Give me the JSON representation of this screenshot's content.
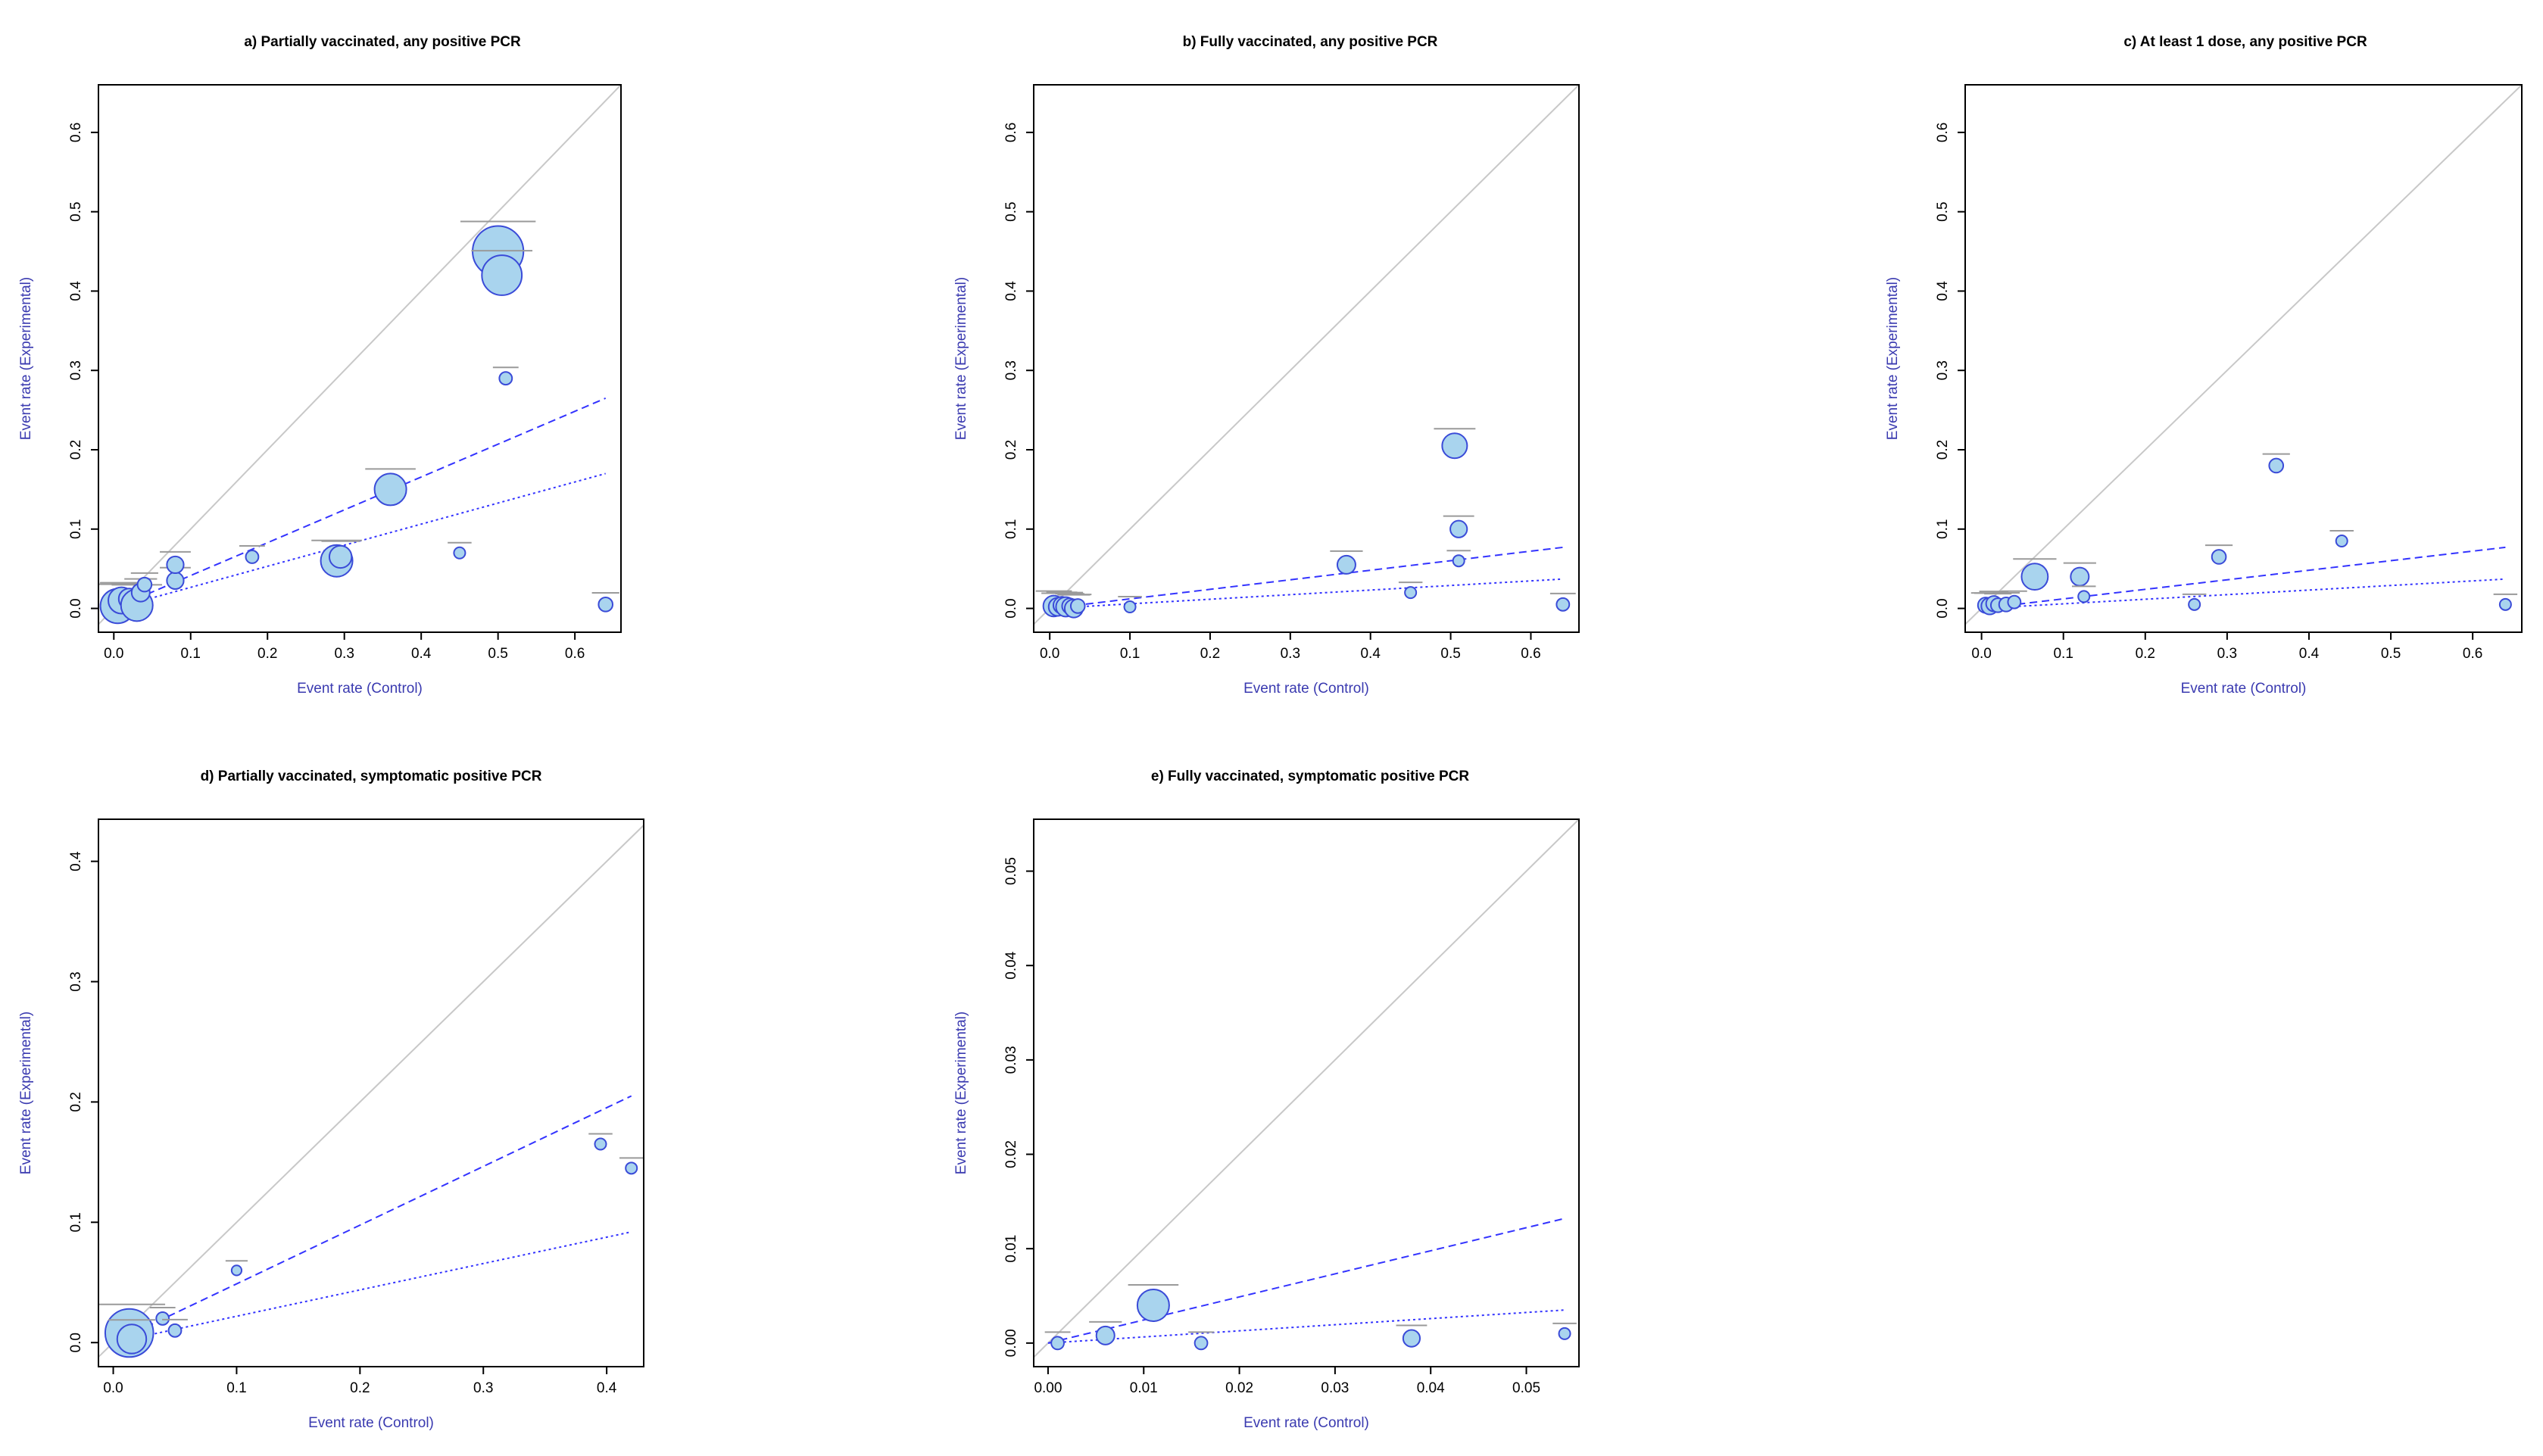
{
  "chart_data": [
    {
      "id": "a",
      "type": "scatter",
      "title": "a) Partially vaccinated, any positive PCR",
      "xlabel": "Event rate (Control)",
      "ylabel": "Event rate (Experimental)",
      "xlim": [
        -0.02,
        0.66
      ],
      "ylim": [
        -0.03,
        0.66
      ],
      "xticks": [
        0.0,
        0.1,
        0.2,
        0.3,
        0.4,
        0.5,
        0.6
      ],
      "yticks": [
        0.0,
        0.1,
        0.2,
        0.3,
        0.4,
        0.5,
        0.6
      ],
      "tick_labels_x": [
        "0.0",
        "0.1",
        "0.2",
        "0.3",
        "0.4",
        "0.5",
        "0.6"
      ],
      "tick_labels_y": [
        "0.0",
        "0.1",
        "0.2",
        "0.3",
        "0.4",
        "0.5",
        "0.6"
      ],
      "points": [
        {
          "x": 0.005,
          "y": 0.003,
          "w": 2.2
        },
        {
          "x": 0.01,
          "y": 0.01,
          "w": 1.6
        },
        {
          "x": 0.02,
          "y": 0.012,
          "w": 1.2
        },
        {
          "x": 0.03,
          "y": 0.004,
          "w": 2.0
        },
        {
          "x": 0.035,
          "y": 0.02,
          "w": 1.0
        },
        {
          "x": 0.04,
          "y": 0.03,
          "w": 0.7
        },
        {
          "x": 0.08,
          "y": 0.035,
          "w": 0.9
        },
        {
          "x": 0.08,
          "y": 0.055,
          "w": 0.9
        },
        {
          "x": 0.18,
          "y": 0.065,
          "w": 0.6
        },
        {
          "x": 0.29,
          "y": 0.06,
          "w": 2.0
        },
        {
          "x": 0.295,
          "y": 0.065,
          "w": 1.3
        },
        {
          "x": 0.36,
          "y": 0.15,
          "w": 2.0
        },
        {
          "x": 0.45,
          "y": 0.07,
          "w": 0.5
        },
        {
          "x": 0.5,
          "y": 0.45,
          "w": 3.4
        },
        {
          "x": 0.505,
          "y": 0.42,
          "w": 2.6
        },
        {
          "x": 0.51,
          "y": 0.29,
          "w": 0.6
        },
        {
          "x": 0.64,
          "y": 0.005,
          "w": 0.7
        }
      ],
      "ci_lines": [
        {
          "name": "upper",
          "style": "dashed",
          "x": [
            0.0,
            0.64
          ],
          "y": [
            0.0,
            0.265
          ]
        },
        {
          "name": "lower",
          "style": "dotted",
          "x": [
            0.0,
            0.64
          ],
          "y": [
            0.0,
            0.17
          ]
        }
      ]
    },
    {
      "id": "b",
      "type": "scatter",
      "title": "b) Fully vaccinated, any positive PCR",
      "xlabel": "Event rate (Control)",
      "ylabel": "Event rate (Experimental)",
      "xlim": [
        -0.02,
        0.66
      ],
      "ylim": [
        -0.03,
        0.66
      ],
      "xticks": [
        0.0,
        0.1,
        0.2,
        0.3,
        0.4,
        0.5,
        0.6
      ],
      "yticks": [
        0.0,
        0.1,
        0.2,
        0.3,
        0.4,
        0.5,
        0.6
      ],
      "tick_labels_x": [
        "0.0",
        "0.1",
        "0.2",
        "0.3",
        "0.4",
        "0.5",
        "0.6"
      ],
      "tick_labels_y": [
        "0.0",
        "0.1",
        "0.2",
        "0.3",
        "0.4",
        "0.5",
        "0.6"
      ],
      "points": [
        {
          "x": 0.005,
          "y": 0.003,
          "w": 1.2
        },
        {
          "x": 0.01,
          "y": 0.002,
          "w": 1.0
        },
        {
          "x": 0.015,
          "y": 0.004,
          "w": 0.9
        },
        {
          "x": 0.02,
          "y": 0.002,
          "w": 1.1
        },
        {
          "x": 0.025,
          "y": 0.003,
          "w": 0.8
        },
        {
          "x": 0.03,
          "y": 0.0,
          "w": 1.0
        },
        {
          "x": 0.035,
          "y": 0.003,
          "w": 0.7
        },
        {
          "x": 0.1,
          "y": 0.002,
          "w": 0.5
        },
        {
          "x": 0.37,
          "y": 0.055,
          "w": 1.0
        },
        {
          "x": 0.45,
          "y": 0.02,
          "w": 0.5
        },
        {
          "x": 0.505,
          "y": 0.205,
          "w": 1.5
        },
        {
          "x": 0.51,
          "y": 0.1,
          "w": 0.9
        },
        {
          "x": 0.51,
          "y": 0.06,
          "w": 0.5
        },
        {
          "x": 0.64,
          "y": 0.005,
          "w": 0.6
        }
      ],
      "ci_lines": [
        {
          "name": "upper",
          "style": "dashed",
          "x": [
            0.0,
            0.64
          ],
          "y": [
            0.0,
            0.077
          ]
        },
        {
          "name": "lower",
          "style": "dotted",
          "x": [
            0.0,
            0.64
          ],
          "y": [
            0.0,
            0.037
          ]
        }
      ]
    },
    {
      "id": "c",
      "type": "scatter",
      "title": "c) At least 1 dose, any positive PCR",
      "xlabel": "Event rate (Control)",
      "ylabel": "Event rate (Experimental)",
      "xlim": [
        -0.02,
        0.66
      ],
      "ylim": [
        -0.03,
        0.66
      ],
      "xticks": [
        0.0,
        0.1,
        0.2,
        0.3,
        0.4,
        0.5,
        0.6
      ],
      "yticks": [
        0.0,
        0.1,
        0.2,
        0.3,
        0.4,
        0.5,
        0.6
      ],
      "tick_labels_x": [
        "0.0",
        "0.1",
        "0.2",
        "0.3",
        "0.4",
        "0.5",
        "0.6"
      ],
      "tick_labels_y": [
        "0.0",
        "0.1",
        "0.2",
        "0.3",
        "0.4",
        "0.5",
        "0.6"
      ],
      "points": [
        {
          "x": 0.005,
          "y": 0.004,
          "w": 0.8
        },
        {
          "x": 0.01,
          "y": 0.003,
          "w": 0.9
        },
        {
          "x": 0.015,
          "y": 0.006,
          "w": 0.8
        },
        {
          "x": 0.02,
          "y": 0.004,
          "w": 0.7
        },
        {
          "x": 0.03,
          "y": 0.005,
          "w": 0.7
        },
        {
          "x": 0.04,
          "y": 0.008,
          "w": 0.6
        },
        {
          "x": 0.065,
          "y": 0.04,
          "w": 1.6
        },
        {
          "x": 0.12,
          "y": 0.04,
          "w": 1.0
        },
        {
          "x": 0.125,
          "y": 0.015,
          "w": 0.5
        },
        {
          "x": 0.26,
          "y": 0.005,
          "w": 0.5
        },
        {
          "x": 0.29,
          "y": 0.065,
          "w": 0.7
        },
        {
          "x": 0.36,
          "y": 0.18,
          "w": 0.7
        },
        {
          "x": 0.44,
          "y": 0.085,
          "w": 0.5
        },
        {
          "x": 0.64,
          "y": 0.005,
          "w": 0.5
        }
      ],
      "ci_lines": [
        {
          "name": "upper",
          "style": "dashed",
          "x": [
            0.0,
            0.64
          ],
          "y": [
            0.0,
            0.077
          ]
        },
        {
          "name": "lower",
          "style": "dotted",
          "x": [
            0.0,
            0.64
          ],
          "y": [
            0.0,
            0.037
          ]
        }
      ]
    },
    {
      "id": "d",
      "type": "scatter",
      "title": "d) Partially vaccinated, symptomatic positive PCR",
      "xlabel": "Event rate (Control)",
      "ylabel": "Event rate (Experimental)",
      "xlim": [
        -0.012,
        0.43
      ],
      "ylim": [
        -0.02,
        0.435
      ],
      "xticks": [
        0.0,
        0.1,
        0.2,
        0.3,
        0.4
      ],
      "yticks": [
        0.0,
        0.1,
        0.2,
        0.3,
        0.4
      ],
      "tick_labels_x": [
        "0.0",
        "0.1",
        "0.2",
        "0.3",
        "0.4"
      ],
      "tick_labels_y": [
        "0.0",
        "0.1",
        "0.2",
        "0.3",
        "0.4"
      ],
      "points": [
        {
          "x": 0.013,
          "y": 0.008,
          "w": 3.2
        },
        {
          "x": 0.015,
          "y": 0.003,
          "w": 1.8
        },
        {
          "x": 0.04,
          "y": 0.02,
          "w": 0.6
        },
        {
          "x": 0.05,
          "y": 0.01,
          "w": 0.6
        },
        {
          "x": 0.1,
          "y": 0.06,
          "w": 0.4
        },
        {
          "x": 0.395,
          "y": 0.165,
          "w": 0.5
        },
        {
          "x": 0.42,
          "y": 0.145,
          "w": 0.5
        }
      ],
      "ci_lines": [
        {
          "name": "upper",
          "style": "dashed",
          "x": [
            0.0,
            0.42
          ],
          "y": [
            0.0,
            0.205
          ]
        },
        {
          "name": "lower",
          "style": "dotted",
          "x": [
            0.0,
            0.42
          ],
          "y": [
            0.0,
            0.092
          ]
        }
      ]
    },
    {
      "id": "e",
      "type": "scatter",
      "title": "e) Fully vaccinated, symptomatic positive PCR",
      "xlabel": "Event rate (Control)",
      "ylabel": "Event rate (Experimental)",
      "xlim": [
        -0.0015,
        0.0555
      ],
      "ylim": [
        -0.0025,
        0.0555
      ],
      "xticks": [
        0.0,
        0.01,
        0.02,
        0.03,
        0.04,
        0.05
      ],
      "yticks": [
        0.0,
        0.01,
        0.02,
        0.03,
        0.04,
        0.05
      ],
      "tick_labels_x": [
        "0.00",
        "0.01",
        "0.02",
        "0.03",
        "0.04",
        "0.05"
      ],
      "tick_labels_y": [
        "0.00",
        "0.01",
        "0.02",
        "0.03",
        "0.04",
        "0.05"
      ],
      "points": [
        {
          "x": 0.001,
          "y": 0.0,
          "w": 0.6
        },
        {
          "x": 0.006,
          "y": 0.0008,
          "w": 1.0
        },
        {
          "x": 0.011,
          "y": 0.004,
          "w": 2.0
        },
        {
          "x": 0.016,
          "y": 0.0,
          "w": 0.6
        },
        {
          "x": 0.038,
          "y": 0.0005,
          "w": 0.9
        },
        {
          "x": 0.054,
          "y": 0.001,
          "w": 0.5
        }
      ],
      "ci_lines": [
        {
          "name": "upper",
          "style": "dashed",
          "x": [
            0.0,
            0.054
          ],
          "y": [
            0.0,
            0.0132
          ]
        },
        {
          "name": "lower",
          "style": "dotted",
          "x": [
            0.0,
            0.054
          ],
          "y": [
            0.0,
            0.0035
          ]
        }
      ]
    }
  ],
  "colors": {
    "point_fill": "#a9d4ee",
    "point_stroke": "#3a4bd8",
    "ci_line": "#3333ff",
    "diagonal": "#c8c8c8",
    "axis_label": "#3a3ab0",
    "ci_bar": "#9a9a9a"
  }
}
